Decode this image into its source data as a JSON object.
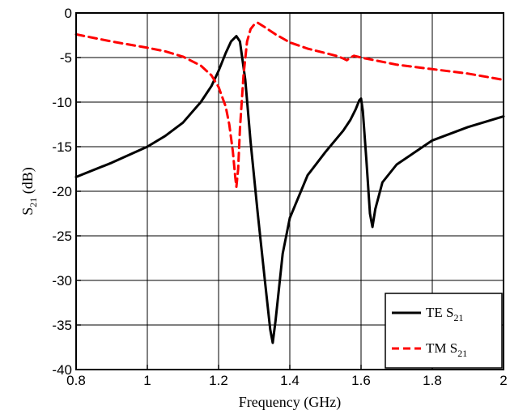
{
  "chart_data": {
    "type": "line",
    "xlabel": "Frequency (GHz)",
    "ylabel": {
      "main": "S",
      "sub": "21",
      "unit": " (dB)"
    },
    "xlim": [
      0.8,
      2.0
    ],
    "ylim": [
      -40,
      0
    ],
    "xticks": [
      0.8,
      1,
      1.2,
      1.4,
      1.6,
      1.8,
      2
    ],
    "xtick_labels": [
      "0.8",
      "1",
      "1.2",
      "1.4",
      "1.6",
      "1.8",
      "2"
    ],
    "yticks": [
      0,
      -5,
      -10,
      -15,
      -20,
      -25,
      -30,
      -35,
      -40
    ],
    "ytick_labels": [
      "0",
      "-5",
      "-10",
      "-15",
      "-20",
      "-25",
      "-30",
      "-35",
      "-40"
    ],
    "grid": true,
    "legend_position": "bottom-right",
    "series": [
      {
        "name": "TE S21",
        "legend": {
          "main": "TE S",
          "sub": "21"
        },
        "color": "#000000",
        "style": "solid",
        "x": [
          0.8,
          0.9,
          1.0,
          1.05,
          1.1,
          1.15,
          1.18,
          1.2,
          1.22,
          1.235,
          1.25,
          1.26,
          1.275,
          1.29,
          1.31,
          1.33,
          1.345,
          1.352,
          1.36,
          1.38,
          1.4,
          1.45,
          1.5,
          1.55,
          1.57,
          1.585,
          1.595,
          1.6,
          1.605,
          1.615,
          1.625,
          1.632,
          1.64,
          1.66,
          1.7,
          1.8,
          1.9,
          2.0
        ],
        "y": [
          -18.4,
          -16.8,
          -15.0,
          -13.8,
          -12.3,
          -10.0,
          -8.2,
          -6.5,
          -4.5,
          -3.2,
          -2.6,
          -3.2,
          -7.5,
          -14.5,
          -22.5,
          -30.0,
          -35.5,
          -37.0,
          -34.5,
          -27.0,
          -23.0,
          -18.2,
          -15.6,
          -13.2,
          -12.0,
          -10.8,
          -9.8,
          -9.6,
          -11.0,
          -16.5,
          -22.5,
          -24.0,
          -22.0,
          -19.0,
          -17.0,
          -14.3,
          -12.8,
          -11.6
        ]
      },
      {
        "name": "TM S21",
        "legend": {
          "main": "TM S",
          "sub": "21"
        },
        "color": "#ff0000",
        "style": "dashed",
        "x": [
          0.8,
          0.9,
          1.0,
          1.05,
          1.1,
          1.15,
          1.18,
          1.2,
          1.22,
          1.23,
          1.24,
          1.247,
          1.25,
          1.255,
          1.26,
          1.27,
          1.28,
          1.29,
          1.3,
          1.31,
          1.33,
          1.36,
          1.4,
          1.45,
          1.5,
          1.53,
          1.55,
          1.56,
          1.57,
          1.58,
          1.6,
          1.7,
          1.8,
          1.9,
          2.0
        ],
        "y": [
          -2.4,
          -3.2,
          -3.9,
          -4.3,
          -4.9,
          -5.9,
          -7.0,
          -8.3,
          -10.5,
          -12.5,
          -15.5,
          -18.5,
          -19.5,
          -17.5,
          -13.0,
          -7.0,
          -3.2,
          -1.8,
          -1.3,
          -1.1,
          -1.6,
          -2.4,
          -3.3,
          -4.0,
          -4.5,
          -4.8,
          -5.1,
          -5.3,
          -5.0,
          -4.8,
          -5.0,
          -5.8,
          -6.3,
          -6.8,
          -7.5
        ]
      }
    ]
  }
}
